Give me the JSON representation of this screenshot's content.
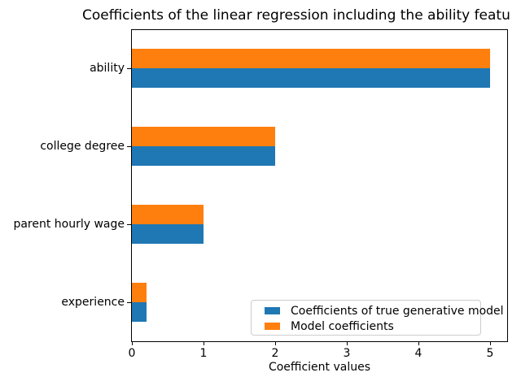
{
  "chart": {
    "title": "Coefficients of the linear regression including the ability featu",
    "xlabel": "Coefficient values"
  },
  "chart_data": {
    "type": "bar",
    "orientation": "horizontal",
    "title": "Coefficients of the linear regression including the ability featu",
    "xlabel": "Coefficient values",
    "ylabel": "",
    "categories": [
      "ability",
      "college degree",
      "parent hourly wage",
      "experience"
    ],
    "series": [
      {
        "name": "Coefficients of true generative model",
        "color": "#1f77b4",
        "values": [
          5.0,
          2.0,
          1.0,
          0.2
        ]
      },
      {
        "name": "Model coefficients",
        "color": "#ff7f0e",
        "values": [
          5.0,
          2.0,
          1.0,
          0.2
        ]
      }
    ],
    "xticks": [
      0,
      1,
      2,
      3,
      4,
      5
    ],
    "xlim": [
      0,
      5.25
    ],
    "grid": false,
    "legend_position": "lower right",
    "colors": {
      "spine": "#000000",
      "legend_border": "#cccccc",
      "background": "#ffffff"
    }
  }
}
